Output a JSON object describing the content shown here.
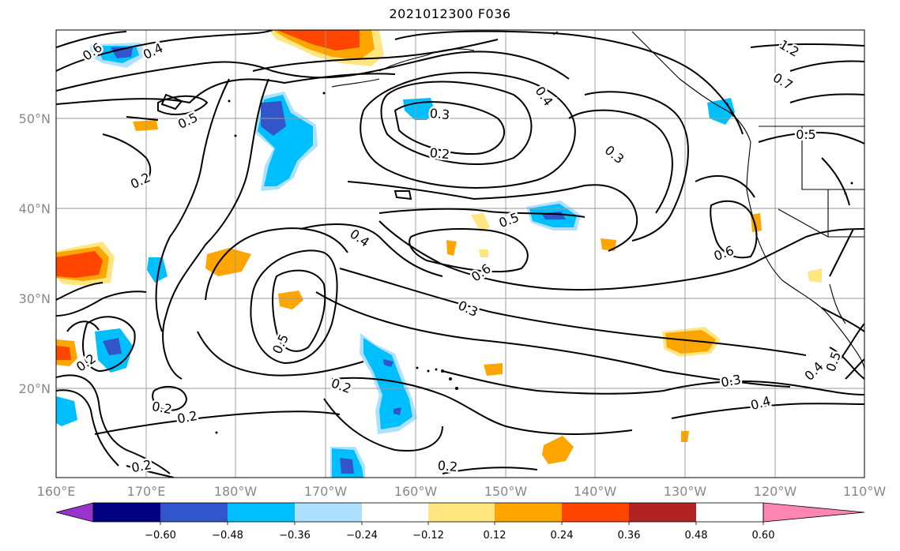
{
  "title": "2021012300 F036",
  "map": {
    "lon_labels": [
      "160°E",
      "170°E",
      "180°W",
      "170°W",
      "160°W",
      "150°W",
      "140°W",
      "130°W",
      "120°W",
      "110°W"
    ],
    "lat_labels": [
      "50°N",
      "40°N",
      "30°N",
      "20°N"
    ],
    "contour_labels": [
      "0.6",
      "0.4",
      "0.5",
      "0.2",
      "0.3",
      "0.2",
      "0.4",
      "0.3",
      "1.2",
      "0.7",
      "0.5",
      "0.5",
      "0.4",
      "0.6",
      "0.6",
      "0.3",
      "0.5",
      "0.2",
      "0.2",
      "0.2",
      "0.2",
      "0.2",
      "0.3",
      "0.4",
      "0.4",
      "0.5",
      "0.2"
    ]
  },
  "colorbar": {
    "ticks": [
      "−0.60",
      "−0.48",
      "−0.36",
      "−0.24",
      "−0.12",
      "0.12",
      "0.24",
      "0.36",
      "0.48",
      "0.60"
    ],
    "colors": [
      "#9933cc",
      "#000080",
      "#3355cc",
      "#00bfff",
      "#aee0ff",
      "#ffffff",
      "#ffe680",
      "#ffa500",
      "#ff4500",
      "#b22222",
      "#ff85b3"
    ]
  }
}
